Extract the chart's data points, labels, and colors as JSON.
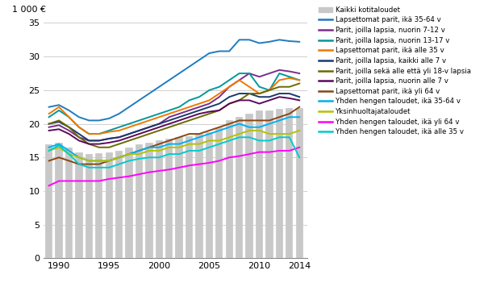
{
  "years": [
    1989,
    1990,
    1991,
    1992,
    1993,
    1994,
    1995,
    1996,
    1997,
    1998,
    1999,
    2000,
    2001,
    2002,
    2003,
    2004,
    2005,
    2006,
    2007,
    2008,
    2009,
    2010,
    2011,
    2012,
    2013,
    2014
  ],
  "bar_data": [
    17.0,
    17.2,
    16.5,
    15.8,
    15.5,
    15.6,
    15.8,
    16.0,
    16.5,
    17.0,
    17.2,
    17.5,
    17.8,
    18.0,
    18.2,
    18.5,
    18.8,
    19.5,
    20.5,
    21.0,
    21.5,
    22.0,
    22.0,
    22.2,
    22.3,
    22.4
  ],
  "bar_color": "#c8c8c8",
  "series": [
    {
      "label": "Lapsettomat parit, ikä 35-64 v",
      "color": "#1f7bbf",
      "data": [
        22.5,
        22.8,
        22.0,
        21.0,
        20.5,
        20.5,
        20.8,
        21.5,
        22.5,
        23.5,
        24.5,
        25.5,
        26.5,
        27.5,
        28.5,
        29.5,
        30.5,
        30.8,
        30.8,
        32.5,
        32.5,
        32.0,
        32.2,
        32.5,
        32.3,
        32.2
      ]
    },
    {
      "label": "Parit, joilla lapsia, nuorin 7-12 v",
      "color": "#7b2d8b",
      "data": [
        19.5,
        19.8,
        19.0,
        18.0,
        17.5,
        17.5,
        17.8,
        18.0,
        18.5,
        19.0,
        19.5,
        20.0,
        21.0,
        21.5,
        22.0,
        22.5,
        23.0,
        24.0,
        25.5,
        26.5,
        27.5,
        27.0,
        27.5,
        28.0,
        27.8,
        27.5
      ]
    },
    {
      "label": "Parit, joilla lapsia, nuorin 13-17 v",
      "color": "#009999",
      "data": [
        21.0,
        22.0,
        21.0,
        19.5,
        18.5,
        18.5,
        19.0,
        19.5,
        20.0,
        20.5,
        21.0,
        21.5,
        22.0,
        22.5,
        23.5,
        24.0,
        25.0,
        25.5,
        26.5,
        27.5,
        27.5,
        25.5,
        25.0,
        27.5,
        27.0,
        26.5
      ]
    },
    {
      "label": "Lapsettomat parit, ikä alle 35 v",
      "color": "#f07800",
      "data": [
        21.5,
        22.5,
        21.0,
        19.5,
        18.5,
        18.5,
        18.8,
        19.0,
        19.5,
        20.0,
        20.5,
        21.0,
        21.5,
        22.0,
        22.5,
        23.0,
        23.5,
        24.5,
        25.5,
        26.5,
        25.5,
        24.5,
        25.0,
        26.5,
        26.8,
        26.5
      ]
    },
    {
      "label": "Parit, joilla lapsia, kaikki alle 7 v",
      "color": "#1a3a6b",
      "data": [
        20.0,
        20.3,
        19.5,
        18.5,
        17.5,
        17.5,
        17.8,
        18.0,
        18.5,
        19.0,
        19.5,
        20.0,
        20.5,
        21.0,
        21.5,
        22.0,
        22.5,
        23.0,
        24.0,
        24.5,
        24.5,
        24.0,
        24.0,
        24.5,
        24.5,
        24.0
      ]
    },
    {
      "label": "Parit, joilla sekä alle että yli 18-v lapsia",
      "color": "#6b6b00",
      "data": [
        20.0,
        20.5,
        19.5,
        18.0,
        17.0,
        16.5,
        16.5,
        17.0,
        17.5,
        18.0,
        18.5,
        19.0,
        19.5,
        20.0,
        20.5,
        21.0,
        21.5,
        22.0,
        23.0,
        23.5,
        24.5,
        24.5,
        25.0,
        25.5,
        25.5,
        26.0
      ]
    },
    {
      "label": "Parit, joilla lapsia, nuorin alle 7 v",
      "color": "#5b0a5b",
      "data": [
        19.0,
        19.2,
        18.5,
        17.5,
        17.0,
        17.0,
        17.2,
        17.5,
        18.0,
        18.5,
        19.0,
        19.5,
        20.0,
        20.5,
        21.0,
        21.5,
        21.8,
        22.0,
        23.0,
        23.5,
        23.5,
        23.0,
        23.5,
        24.0,
        23.8,
        23.5
      ]
    },
    {
      "label": "Lapsettomat parit, ikä yli 64 v",
      "color": "#8b4513",
      "data": [
        14.5,
        15.0,
        14.5,
        14.0,
        14.0,
        14.0,
        14.5,
        15.0,
        15.5,
        16.0,
        16.5,
        17.0,
        17.5,
        18.0,
        18.5,
        18.5,
        19.0,
        19.5,
        20.0,
        20.5,
        20.5,
        20.5,
        20.5,
        21.0,
        21.5,
        22.5
      ]
    },
    {
      "label": "Yhden hengen taloudet, ikä 35-64 v",
      "color": "#00b0f0",
      "data": [
        16.5,
        17.0,
        16.0,
        15.0,
        14.5,
        14.5,
        14.5,
        15.0,
        15.5,
        16.0,
        16.5,
        16.5,
        17.0,
        17.0,
        17.5,
        18.0,
        18.5,
        19.0,
        19.5,
        20.0,
        19.5,
        19.5,
        20.0,
        20.5,
        21.0,
        21.0
      ]
    },
    {
      "label": "Yksinhuoltajataloudet",
      "color": "#b5c200",
      "data": [
        16.0,
        16.5,
        15.5,
        15.0,
        14.5,
        14.5,
        14.5,
        15.0,
        15.5,
        15.5,
        16.0,
        16.0,
        16.5,
        16.5,
        17.0,
        17.0,
        17.5,
        17.5,
        18.0,
        18.5,
        19.0,
        19.0,
        18.5,
        18.5,
        18.5,
        19.0
      ]
    },
    {
      "label": "Yhden hengen taloudet, ikä yli 64 v",
      "color": "#ff00ff",
      "data": [
        10.8,
        11.5,
        11.5,
        11.5,
        11.5,
        11.5,
        11.8,
        12.0,
        12.2,
        12.5,
        12.8,
        13.0,
        13.2,
        13.5,
        13.8,
        14.0,
        14.2,
        14.5,
        15.0,
        15.2,
        15.5,
        15.8,
        15.8,
        16.0,
        16.0,
        16.5
      ]
    },
    {
      "label": "Yhden hengen taloudet, ikä alle 35 v",
      "color": "#00cccc",
      "data": [
        16.0,
        16.8,
        15.5,
        14.0,
        13.5,
        13.5,
        13.5,
        14.0,
        14.5,
        14.8,
        15.0,
        15.0,
        15.5,
        15.5,
        16.0,
        16.0,
        16.5,
        17.0,
        17.5,
        18.0,
        18.0,
        17.5,
        17.5,
        18.0,
        18.0,
        15.0
      ]
    }
  ],
  "ylabel": "1 000 €",
  "ylim": [
    0,
    35
  ],
  "yticks": [
    0,
    5,
    10,
    15,
    20,
    25,
    30,
    35
  ],
  "xlim": [
    1988.5,
    2014.8
  ],
  "xticks": [
    1990,
    1995,
    2000,
    2005,
    2010,
    2014
  ],
  "grid_color": "#c8c8c8",
  "background_color": "#ffffff",
  "bar_width": 0.75,
  "line_width": 1.4
}
